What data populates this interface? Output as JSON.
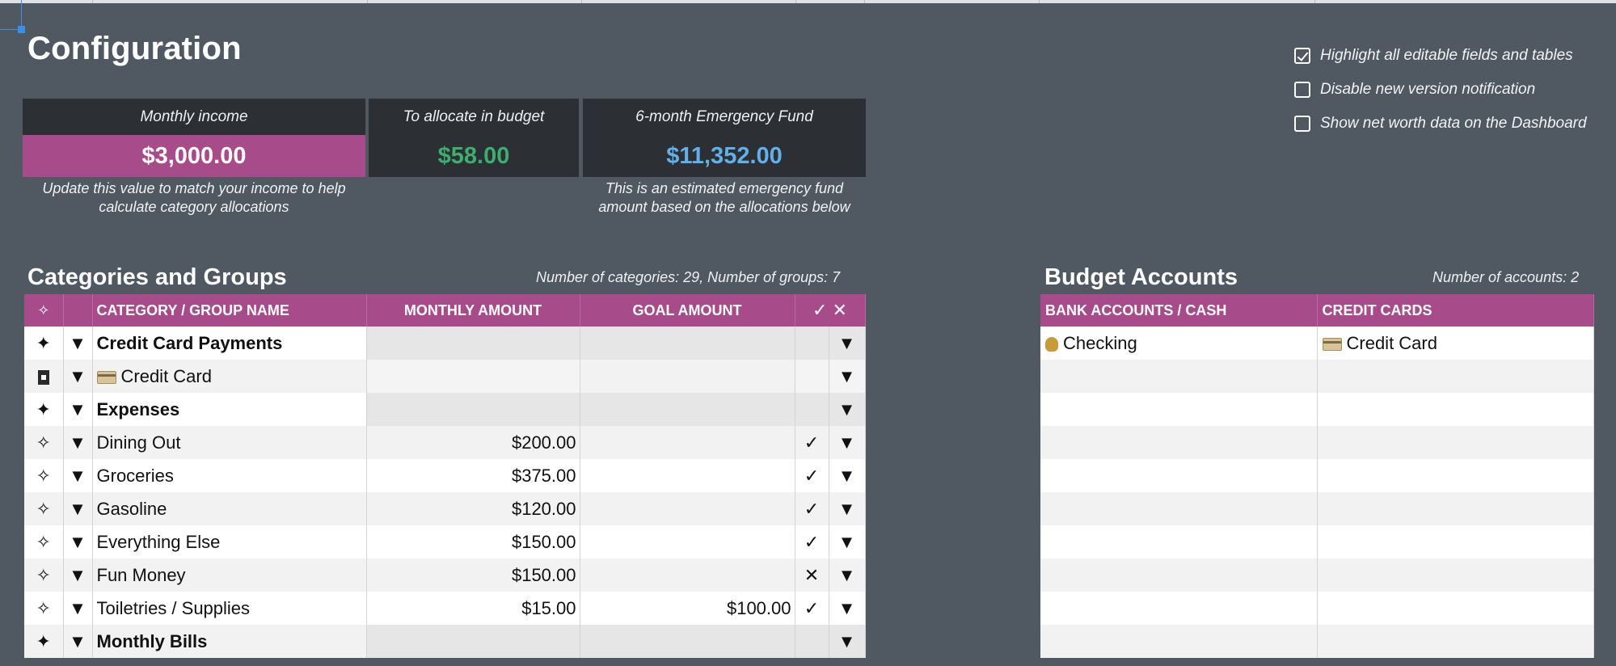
{
  "page_title": "Configuration",
  "cards": [
    {
      "label": "Monthly income",
      "value": "$3,000.00",
      "note": "Update this value to match your income to help calculate category allocations",
      "color": "#a74b8a"
    },
    {
      "label": "To allocate in budget",
      "value": "$58.00",
      "note": "",
      "color": "#3cae6e"
    },
    {
      "label": "6-month Emergency Fund",
      "value": "$11,352.00",
      "note": "This is an estimated emergency fund amount based on the allocations below",
      "color": "#62b0ea"
    }
  ],
  "settings": [
    {
      "label": "Highlight all editable fields and tables",
      "checked": true
    },
    {
      "label": "Disable new version notification",
      "checked": false
    },
    {
      "label": "Show net worth data on the Dashboard",
      "checked": false
    }
  ],
  "categories": {
    "title": "Categories and Groups",
    "meta": "Number of categories: 29, Number of groups: 7",
    "columns": {
      "icon": "✧",
      "name": "CATEGORY / GROUP NAME",
      "monthly": "MONTHLY AMOUNT",
      "goal": "GOAL AMOUNT",
      "flags": "✓ ✕"
    },
    "rows": [
      {
        "type": "group",
        "name": "Credit Card Payments",
        "monthly": "",
        "goal": "",
        "flag": ""
      },
      {
        "type": "card",
        "name": "Credit Card",
        "monthly": "",
        "goal": "",
        "flag": ""
      },
      {
        "type": "group",
        "name": "Expenses",
        "monthly": "",
        "goal": "",
        "flag": ""
      },
      {
        "type": "cat",
        "name": "Dining Out",
        "monthly": "$200.00",
        "goal": "",
        "flag": "✓"
      },
      {
        "type": "cat",
        "name": "Groceries",
        "monthly": "$375.00",
        "goal": "",
        "flag": "✓"
      },
      {
        "type": "cat",
        "name": "Gasoline",
        "monthly": "$120.00",
        "goal": "",
        "flag": "✓"
      },
      {
        "type": "cat",
        "name": "Everything Else",
        "monthly": "$150.00",
        "goal": "",
        "flag": "✓"
      },
      {
        "type": "cat",
        "name": "Fun Money",
        "monthly": "$150.00",
        "goal": "",
        "flag": "✕"
      },
      {
        "type": "cat",
        "name": "Toiletries / Supplies",
        "monthly": "$15.00",
        "goal": "$100.00",
        "flag": "✓"
      },
      {
        "type": "group",
        "name": "Monthly Bills",
        "monthly": "",
        "goal": "",
        "flag": ""
      }
    ]
  },
  "accounts": {
    "title": "Budget Accounts",
    "meta": "Number of accounts: 2",
    "columns": {
      "bank": "BANK ACCOUNTS / CASH",
      "credit": "CREDIT CARDS"
    },
    "bank": [
      "Checking"
    ],
    "credit": [
      "Credit Card"
    ]
  }
}
